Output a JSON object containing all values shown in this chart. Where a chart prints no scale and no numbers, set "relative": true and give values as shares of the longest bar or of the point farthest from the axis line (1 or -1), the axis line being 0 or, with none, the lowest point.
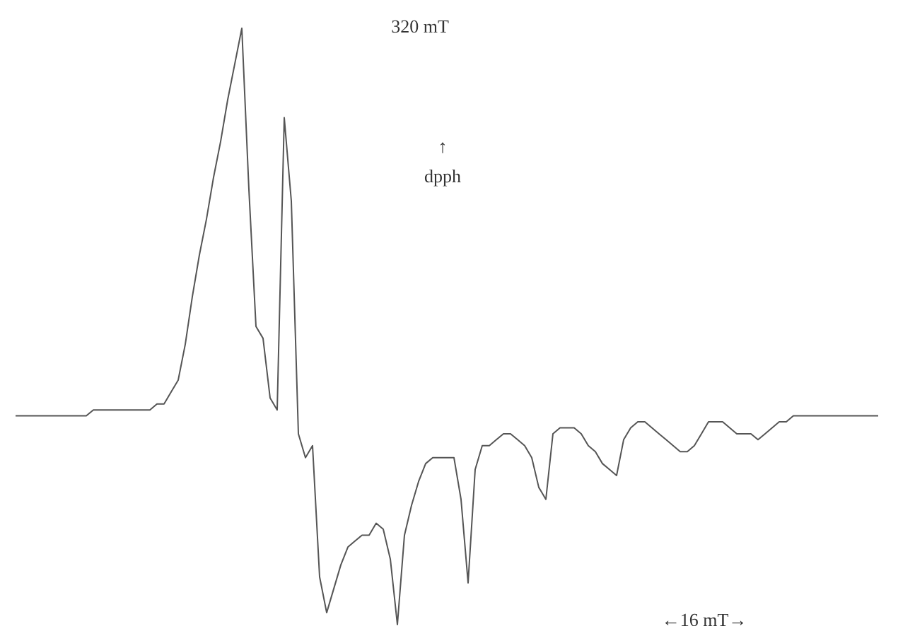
{
  "chart_data": {
    "type": "line",
    "relative": true,
    "color": "#555555",
    "annotations": [
      "320 mT",
      "↑",
      "dpph",
      "←16 mT→"
    ],
    "categories": [
      null,
      null,
      null,
      null,
      null,
      null,
      null,
      null,
      null,
      null,
      null,
      null,
      null,
      null,
      null,
      null,
      null,
      null,
      null,
      null,
      null,
      null,
      null,
      null,
      null,
      null,
      null,
      null,
      null,
      null,
      null,
      null,
      null,
      null,
      null,
      null,
      null,
      null,
      null,
      null,
      null,
      null,
      null,
      null,
      null,
      null,
      null,
      null,
      null,
      null,
      null,
      null,
      null,
      null,
      null,
      null,
      null,
      null,
      null,
      null,
      null,
      null,
      null,
      null,
      null,
      null,
      null,
      null,
      null,
      null,
      null,
      null,
      null,
      null,
      null,
      null,
      null,
      null,
      null,
      null,
      null,
      null,
      null,
      null,
      null,
      null,
      null,
      null,
      null,
      null,
      null,
      null,
      null,
      null,
      null,
      null,
      null,
      null,
      null,
      null,
      null,
      null,
      null,
      null,
      null,
      null,
      null,
      null,
      null,
      null,
      null,
      null,
      null,
      null,
      null,
      null,
      null,
      null,
      null,
      null,
      null,
      null,
      null
    ],
    "values": [
      0.35,
      0.35,
      0.35,
      0.35,
      0.35,
      0.35,
      0.35,
      0.35,
      0.35,
      0.35,
      0.35,
      0.36,
      0.36,
      0.36,
      0.36,
      0.36,
      0.36,
      0.36,
      0.36,
      0.36,
      0.37,
      0.37,
      0.39,
      0.41,
      0.47,
      0.55,
      0.62,
      0.68,
      0.75,
      0.81,
      0.88,
      0.94,
      1,
      0.73,
      0.5,
      0.48,
      0.38,
      0.36,
      0.85,
      0.71,
      0.32,
      0.28,
      0.3,
      0.08,
      0.02,
      0.06,
      0.1,
      0.13,
      0.14,
      0.15,
      0.15,
      0.17,
      0.16,
      0.11,
      0,
      0.15,
      0.2,
      0.24,
      0.27,
      0.28,
      0.28,
      0.28,
      0.28,
      0.21,
      0.07,
      0.26,
      0.3,
      0.3,
      0.31,
      0.32,
      0.32,
      0.31,
      0.3,
      0.28,
      0.23,
      0.21,
      0.32,
      0.33,
      0.33,
      0.33,
      0.32,
      0.3,
      0.29,
      0.27,
      0.26,
      0.25,
      0.31,
      0.33,
      0.34,
      0.34,
      0.33,
      0.32,
      0.31,
      0.3,
      0.29,
      0.29,
      0.3,
      0.32,
      0.34,
      0.34,
      0.34,
      0.33,
      0.32,
      0.32,
      0.32,
      0.31,
      0.32,
      0.33,
      0.34,
      0.34,
      0.35,
      0.35,
      0.35,
      0.35,
      0.35,
      0.35,
      0.35,
      0.35,
      0.35,
      0.35,
      0.35,
      0.35,
      0.35
    ]
  }
}
